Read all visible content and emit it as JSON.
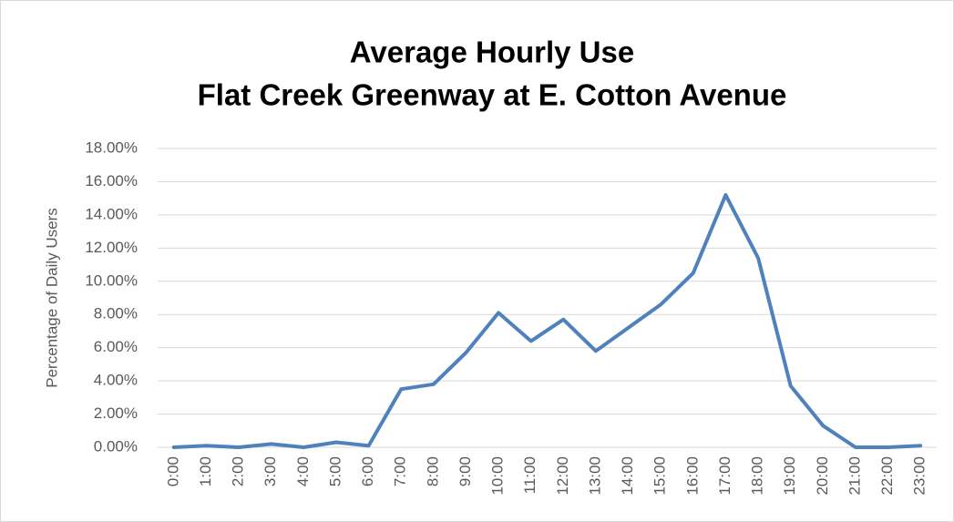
{
  "chart_data": {
    "type": "line",
    "title": [
      "Average Hourly Use",
      "Flat Creek Greenway at E. Cotton Avenue"
    ],
    "y_label": "Percentage of Daily Users",
    "categories": [
      "0:00",
      "1:00",
      "2:00",
      "3:00",
      "4:00",
      "5:00",
      "6:00",
      "7:00",
      "8:00",
      "9:00",
      "10:00",
      "11:00",
      "12:00",
      "13:00",
      "14:00",
      "15:00",
      "16:00",
      "17:00",
      "18:00",
      "19:00",
      "20:00",
      "21:00",
      "22:00",
      "23:00"
    ],
    "series": [
      {
        "name": "Average Hourly Use",
        "color": "#4f81bd",
        "values": [
          0,
          0.1,
          0,
          0.2,
          0,
          0.3,
          0.1,
          3.5,
          3.8,
          5.7,
          8.1,
          6.4,
          7.7,
          5.8,
          7.2,
          8.6,
          10.5,
          15.2,
          11.4,
          3.7,
          1.3,
          0,
          0,
          0.1
        ]
      }
    ],
    "ylim": [
      0,
      18
    ],
    "yticks": [
      {
        "value": 0,
        "label": "0.00%"
      },
      {
        "value": 2,
        "label": "2.00%"
      },
      {
        "value": 4,
        "label": "4.00%"
      },
      {
        "value": 6,
        "label": "6.00%"
      },
      {
        "value": 8,
        "label": "8.00%"
      },
      {
        "value": 10,
        "label": "10.00%"
      },
      {
        "value": 12,
        "label": "12.00%"
      },
      {
        "value": 14,
        "label": "14.00%"
      },
      {
        "value": 16,
        "label": "16.00%"
      },
      {
        "value": 18,
        "label": "18.00%"
      }
    ],
    "grid": true
  }
}
